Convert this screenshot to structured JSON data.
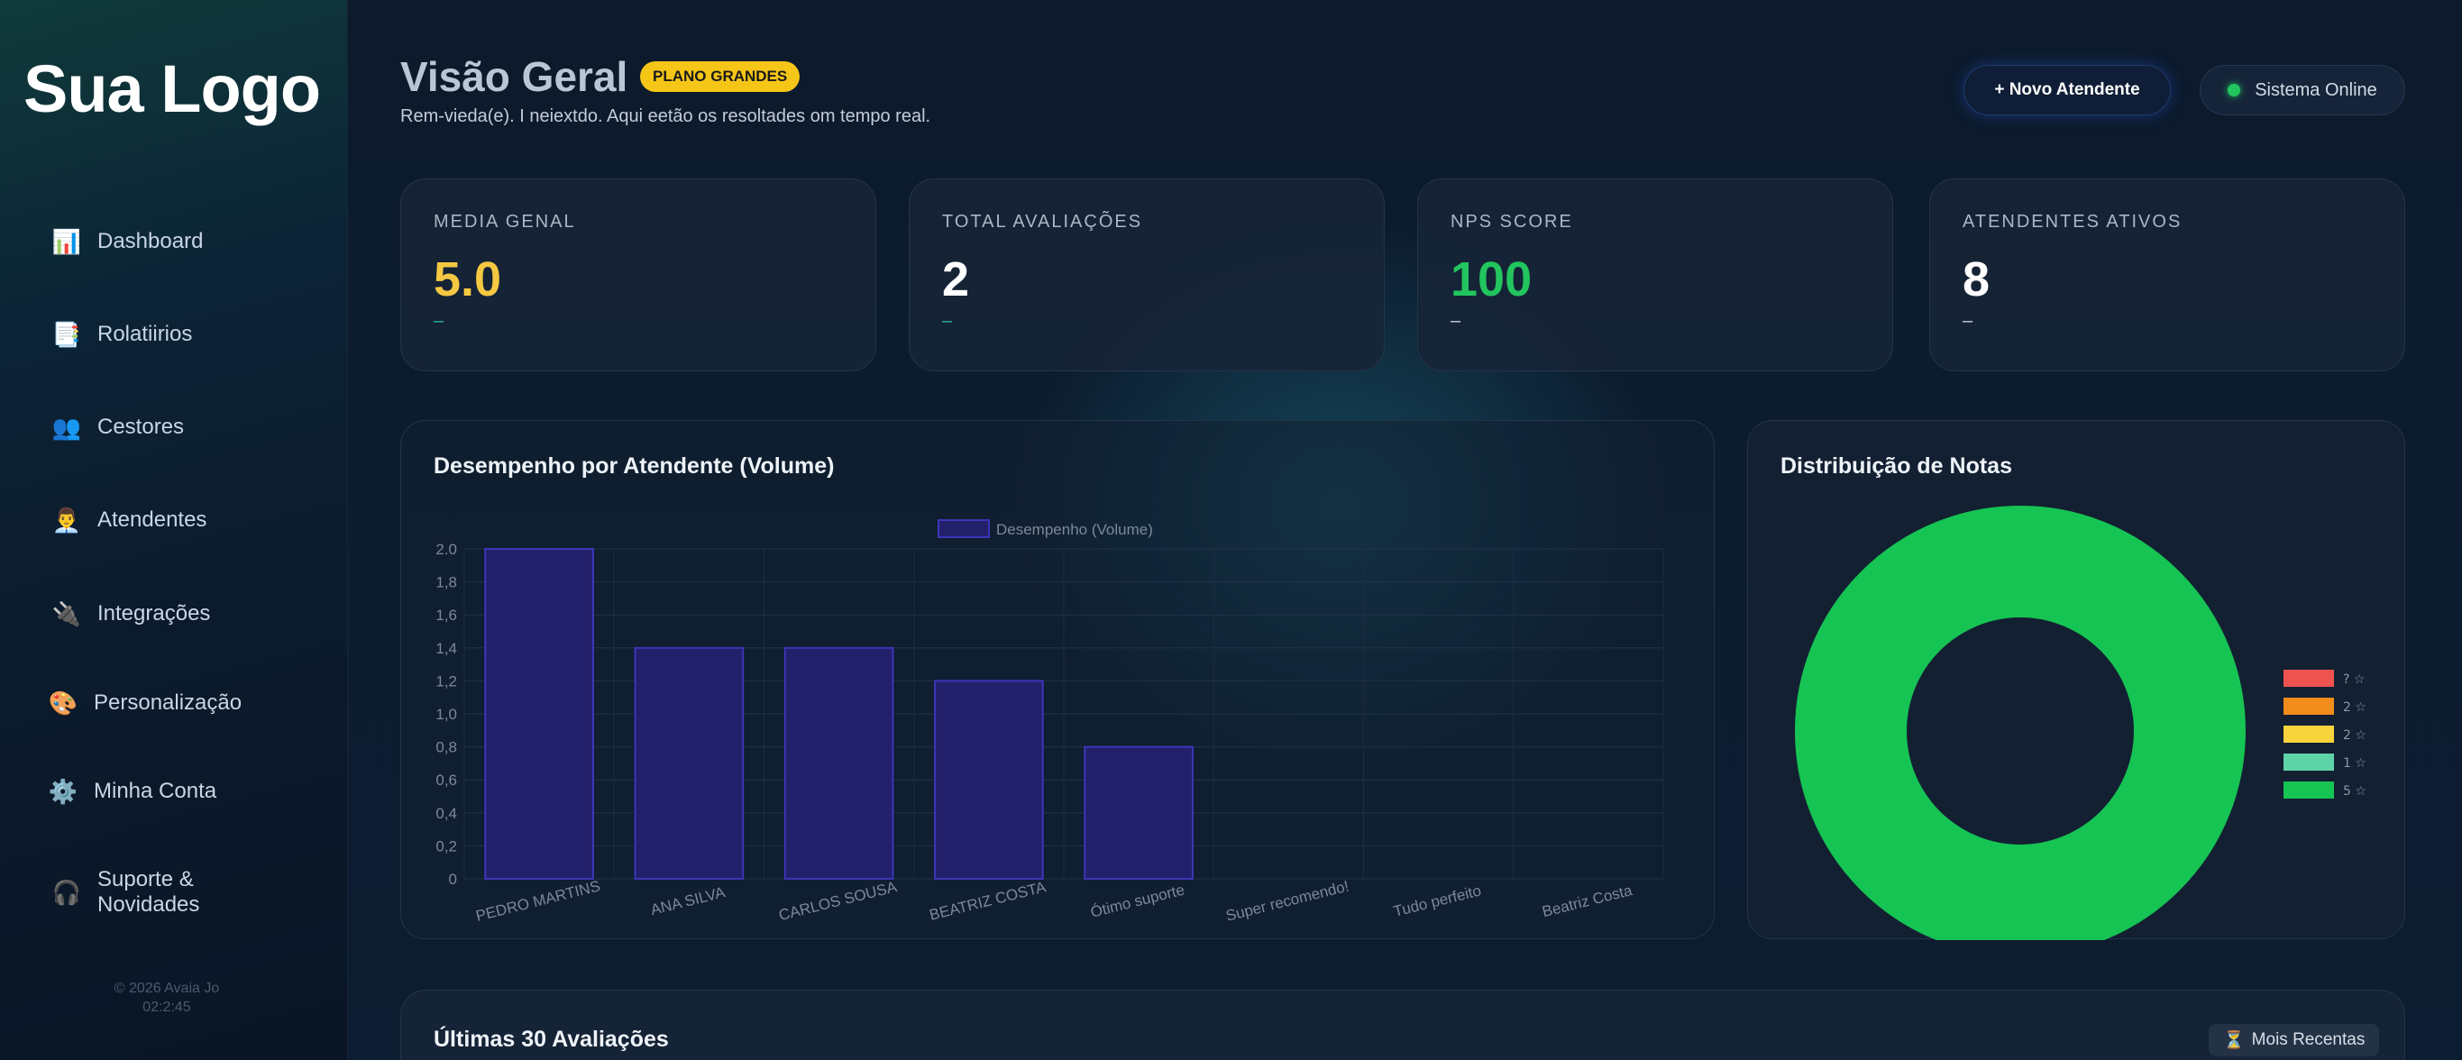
{
  "sidebar": {
    "logo": "Sua Logo",
    "items": [
      {
        "icon": "bar-chart-icon",
        "glyph": "📊",
        "label": "Dashboard"
      },
      {
        "icon": "report-icon",
        "glyph": "📑",
        "label": "Rolatiirios"
      },
      {
        "icon": "people-icon",
        "glyph": "👥",
        "label": "Cestores"
      },
      {
        "icon": "agent-icon",
        "glyph": "👨‍💼",
        "label": "Atendentes"
      },
      {
        "icon": "plug-icon",
        "glyph": "🔌",
        "label": "Integrações"
      },
      {
        "icon": "palette-icon",
        "glyph": "🎨",
        "label": "Personalização"
      },
      {
        "icon": "gear-icon",
        "glyph": "⚙️",
        "label": "Minha Conta"
      },
      {
        "icon": "headphones-icon",
        "glyph": "🎧",
        "label": "Suporte & Novidades"
      }
    ],
    "footer_copy": "© 2026 Avaia Jo",
    "footer_time": "02:2:45"
  },
  "header": {
    "title": "Visão Geral",
    "plan_badge": "PLANO GRANDES",
    "subtitle": "Rem-vieda(e). I neiextdo. Aqui eetão os resoltades om tempo real.",
    "new_button": "+ Novo Atendente",
    "status": "Sistema Online"
  },
  "stats": [
    {
      "label": "MEDIA GENAL",
      "value": "5.0",
      "sub": "–",
      "color": "#f5c842",
      "sub_color": "#2fb59a"
    },
    {
      "label": "TOTAL AVALIAÇÕES",
      "value": "2",
      "sub": "–",
      "color": "#ffffff",
      "sub_color": "#2fb59a"
    },
    {
      "label": "NPS SCORE",
      "value": "100",
      "sub": "–",
      "color": "#22c55e",
      "sub_color": "#c9d2dd"
    },
    {
      "label": "ATENDENTES ATIVOS",
      "value": "8",
      "sub": "–",
      "color": "#ffffff",
      "sub_color": "#c9d2dd"
    }
  ],
  "bar_chart": {
    "title": "Desempenho por Atendente (Volume)"
  },
  "dist_chart": {
    "title": "Distribuição de Notas"
  },
  "recent": {
    "title": "Últimas 30 Avaliações",
    "button_icon": "hourglass-icon",
    "button_glyph": "⏳",
    "button_label": "Mois Recentas"
  },
  "chart_data": [
    {
      "type": "bar",
      "title": "Desempenho por Atendente (Volume)",
      "categories": [
        "PEDRO MARTINS",
        "ANA SILVA",
        "CARLOS SOUSA",
        "BEATRIZ COSTA",
        "Ótimo suporte",
        "Super recomendo!",
        "Tudo perfeito",
        "Beatriz Costa"
      ],
      "series": [
        {
          "name": "Desempenho (Volume)",
          "values": [
            2.0,
            1.4,
            1.4,
            1.2,
            0.8,
            0,
            0,
            0
          ]
        }
      ],
      "yticks": [
        "2.0",
        "1,8",
        "1,6",
        "1,4",
        "1,2",
        "1,0",
        "0,8",
        "0,6",
        "0,4",
        "0,2",
        "0"
      ],
      "ylim": [
        0,
        2.0
      ],
      "grid": true,
      "legend": "top",
      "colors": {
        "fill": "#23206b",
        "stroke": "#3b36b8"
      }
    },
    {
      "type": "pie",
      "title": "Distribuição de Notas",
      "donut": true,
      "slices": [
        {
          "label": "? ☆",
          "value": 0,
          "color": "#ef5350"
        },
        {
          "label": "2 ☆",
          "value": 0,
          "color": "#f28c1b"
        },
        {
          "label": "2 ☆",
          "value": 0,
          "color": "#f8d43c"
        },
        {
          "label": "1 ☆",
          "value": 0,
          "color": "#5fd3a8"
        },
        {
          "label": "5 ☆",
          "value": 100,
          "color": "#16c453"
        }
      ],
      "legend": "right"
    }
  ]
}
